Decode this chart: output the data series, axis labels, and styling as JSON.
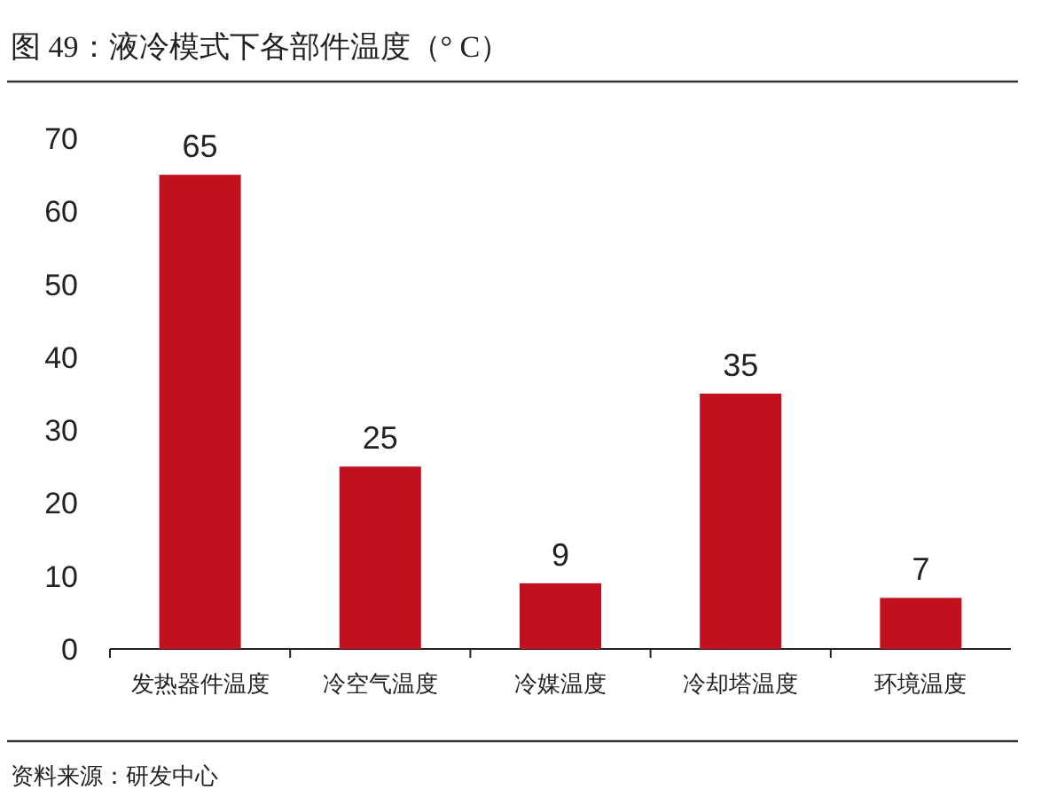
{
  "chart_data": {
    "type": "bar",
    "title": "图 49：液冷模式下各部件温度（° C）",
    "categories": [
      "发热器件温度",
      "冷空气温度",
      "冷媒温度",
      "冷却塔温度",
      "环境温度"
    ],
    "values": [
      65,
      25,
      9,
      35,
      7
    ],
    "color": "#c2101f",
    "ylim": [
      0,
      70
    ],
    "yticks": [
      0,
      10,
      20,
      30,
      40,
      50,
      60,
      70
    ],
    "grid": false,
    "data_labels": true,
    "annotations": [
      "资料来源：研发中心"
    ]
  }
}
